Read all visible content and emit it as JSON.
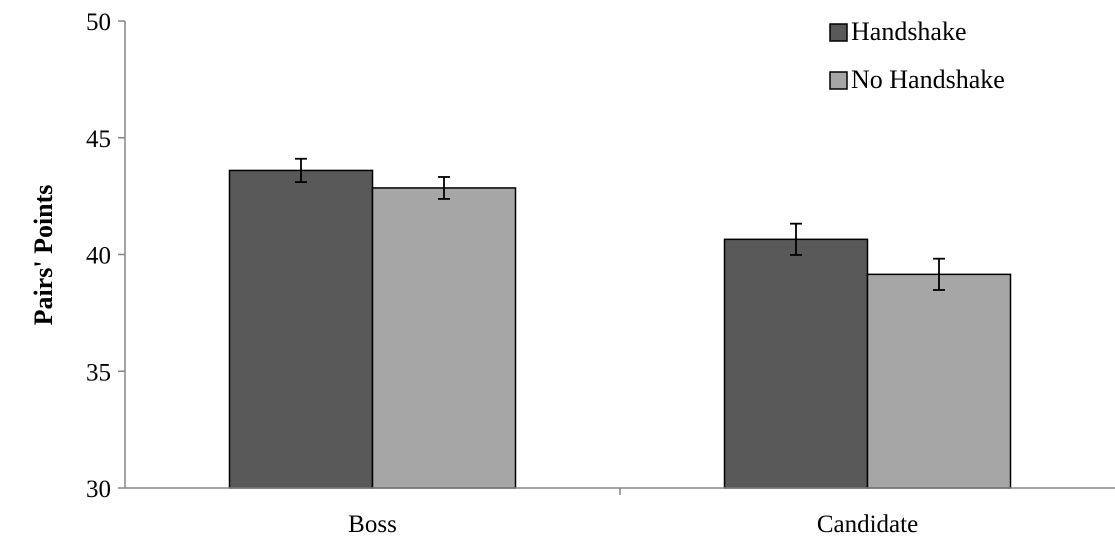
{
  "chart_data": {
    "type": "bar",
    "title": "",
    "xlabel": "",
    "ylabel": "Pairs' Points",
    "ylim": [
      30,
      50
    ],
    "yticks": [
      30,
      35,
      40,
      45,
      50
    ],
    "categories": [
      "Boss",
      "Candidate"
    ],
    "series": [
      {
        "name": "Handshake",
        "color": "#595959",
        "values": [
          43.6,
          40.65
        ],
        "error": [
          0.5,
          0.67
        ]
      },
      {
        "name": "No Handshake",
        "color": "#a6a6a6",
        "values": [
          42.85,
          39.15
        ],
        "error": [
          0.47,
          0.67
        ]
      }
    ],
    "legend_position": "top-right",
    "grid": false
  }
}
